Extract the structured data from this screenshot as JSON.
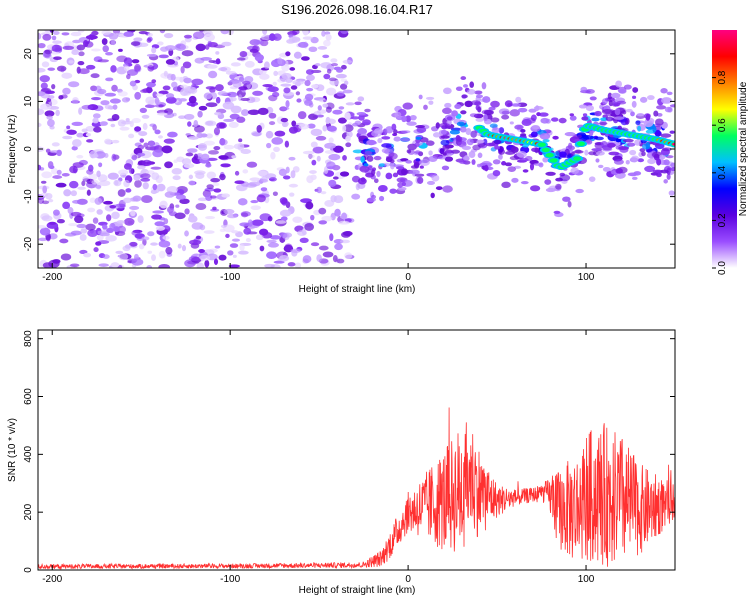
{
  "title": "S196.2026.098.16.04.R17",
  "chart_data": [
    {
      "type": "heatmap",
      "name": "spectrogram",
      "xlabel": "Height of straight line (km)",
      "ylabel": "Frequency (Hz)",
      "xlim": [
        -208,
        150
      ],
      "ylim": [
        -25,
        25
      ],
      "xticks": [
        -200,
        -100,
        0,
        100
      ],
      "xtick_labels": [
        "-200",
        "-100",
        "0",
        "100"
      ],
      "yticks": [
        -20,
        -10,
        0,
        10,
        20
      ],
      "ytick_labels": [
        "-20",
        "-10",
        "0",
        "10",
        "20"
      ],
      "colorbar": {
        "label": "Normalized spectral amplitude",
        "range": [
          0,
          1
        ],
        "ticks": [
          0.0,
          0.2,
          0.4,
          0.6,
          0.8
        ],
        "tick_labels": [
          "0.0",
          "0.2",
          "0.4",
          "0.6",
          "0.8"
        ],
        "colors": [
          "#ffffff",
          "#9a4dff",
          "#5a00e0",
          "#0000ff",
          "#00c0ff",
          "#00ff60",
          "#ffff00",
          "#ff8000",
          "#ff0000",
          "#ff0080"
        ]
      },
      "noise_region_x": [
        -208,
        -32
      ],
      "signal_ridge": {
        "x": [
          -30,
          -15,
          0,
          15,
          30,
          38,
          45,
          60,
          75,
          85,
          95,
          100,
          110,
          125,
          140,
          150
        ],
        "freq_hz": [
          0,
          -2,
          1,
          0,
          6,
          5,
          3,
          2,
          1,
          -4,
          -2,
          5,
          4,
          3,
          2,
          1
        ]
      }
    },
    {
      "type": "line",
      "name": "snr",
      "xlabel": "Height of straight line (km)",
      "ylabel": "SNR (10 * v/v)",
      "xlim": [
        -208,
        150
      ],
      "ylim": [
        0,
        830
      ],
      "xticks": [
        -200,
        -100,
        0,
        100
      ],
      "xtick_labels": [
        "-200",
        "-100",
        "0",
        "100"
      ],
      "yticks": [
        0,
        200,
        400,
        600,
        800
      ],
      "ytick_labels": [
        "0",
        "200",
        "400",
        "600",
        "800"
      ],
      "line_color": "#ff3030",
      "series": [
        {
          "name": "SNR",
          "x": [
            -208,
            -150,
            -100,
            -50,
            -25,
            -15,
            -10,
            0,
            10,
            20,
            30,
            35,
            40,
            50,
            60,
            70,
            78,
            85,
            95,
            100,
            110,
            120,
            130,
            140,
            150
          ],
          "mean": [
            12,
            13,
            14,
            16,
            18,
            40,
            90,
            200,
            220,
            240,
            280,
            330,
            270,
            240,
            250,
            260,
            270,
            210,
            210,
            250,
            260,
            240,
            210,
            220,
            240
          ],
          "spread": [
            8,
            8,
            8,
            9,
            10,
            30,
            50,
            70,
            120,
            180,
            230,
            200,
            160,
            60,
            30,
            25,
            40,
            140,
            200,
            230,
            250,
            230,
            160,
            110,
            60
          ]
        }
      ]
    }
  ]
}
